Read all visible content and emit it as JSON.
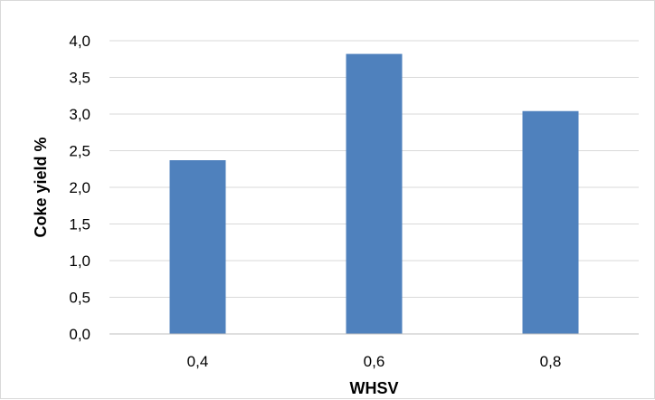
{
  "chart_data": {
    "type": "bar",
    "title": "",
    "xlabel": "WHSV",
    "ylabel": "Coke yield %",
    "categories": [
      "0,4",
      "0,6",
      "0,8"
    ],
    "values": [
      2.37,
      3.82,
      3.04
    ],
    "ylim": [
      0,
      4
    ],
    "yticks": [
      0,
      0.5,
      1,
      1.5,
      2,
      2.5,
      3,
      3.5,
      4
    ],
    "ytick_labels": [
      "0,0",
      "0,5",
      "1,0",
      "1,5",
      "2,0",
      "2,5",
      "3,0",
      "3,5",
      "4,0"
    ],
    "grid": true,
    "legend": "none",
    "colors": {
      "bar": "#4f81bd",
      "grid": "#d9d9d9",
      "axis": "#bfbfbf"
    }
  }
}
